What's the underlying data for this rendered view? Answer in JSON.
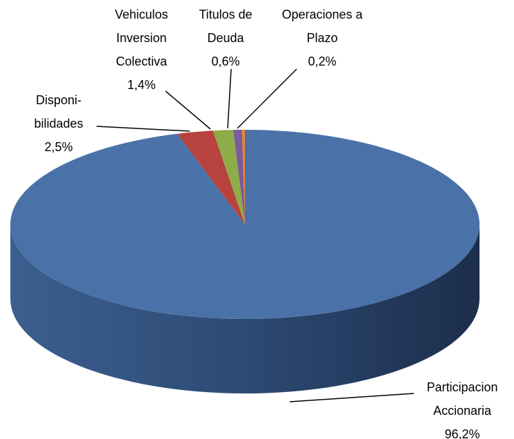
{
  "chart_data": {
    "type": "pie",
    "categories": [
      "Participacion Accionaria",
      "Disponi-bilidades",
      "Vehiculos Inversion Colectiva",
      "Titulos de Deuda",
      "Operaciones a Plazo"
    ],
    "values": [
      96.2,
      2.5,
      1.4,
      0.6,
      0.2
    ],
    "value_labels": [
      "96,2%",
      "2,5%",
      "1,4%",
      "0,6%",
      "0,2%"
    ],
    "colors": [
      "#4a72a8",
      "#b8423e",
      "#8eac48",
      "#7a5b9b",
      "#e8862c"
    ]
  }
}
